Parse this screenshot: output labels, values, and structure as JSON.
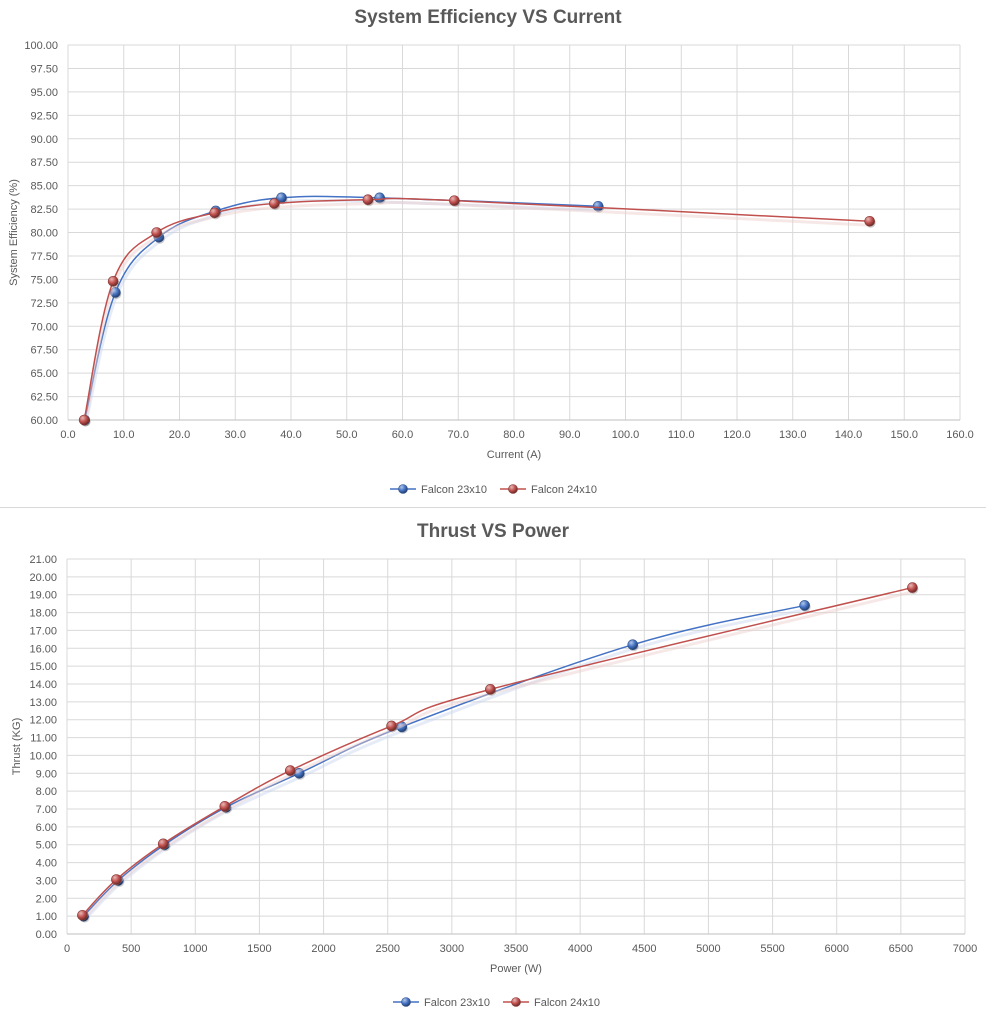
{
  "chart_data": [
    {
      "type": "line",
      "title": "System Efficiency VS Current",
      "xlabel": "Current (A)",
      "ylabel": "System Efficiency (%)",
      "xlim": [
        0,
        160
      ],
      "ylim": [
        60,
        100
      ],
      "x_ticks": [
        "0.0",
        "10.0",
        "20.0",
        "30.0",
        "40.0",
        "50.0",
        "60.0",
        "70.0",
        "80.0",
        "90.0",
        "100.0",
        "110.0",
        "120.0",
        "130.0",
        "140.0",
        "150.0",
        "160.0"
      ],
      "y_ticks": [
        "60.00",
        "62.50",
        "65.00",
        "67.50",
        "70.00",
        "72.50",
        "75.00",
        "77.50",
        "80.00",
        "82.50",
        "85.00",
        "87.50",
        "90.00",
        "92.50",
        "95.00",
        "97.50",
        "100.00"
      ],
      "grid": true,
      "legend_position": "bottom",
      "series": [
        {
          "name": "Falcon 23x10",
          "color": "#4472c4",
          "points": [
            [
              3.0,
              60.0
            ],
            [
              8.5,
              73.6
            ],
            [
              16.3,
              79.5
            ],
            [
              26.5,
              82.3
            ],
            [
              38.3,
              83.7
            ],
            [
              55.9,
              83.7
            ],
            [
              95.1,
              82.8
            ]
          ]
        },
        {
          "name": "Falcon 24x10",
          "color": "#c0504d",
          "points": [
            [
              2.9,
              60.0
            ],
            [
              8.1,
              74.8
            ],
            [
              15.9,
              80.0
            ],
            [
              26.3,
              82.1
            ],
            [
              37.0,
              83.1
            ],
            [
              53.8,
              83.5
            ],
            [
              69.3,
              83.4
            ],
            [
              143.8,
              81.2
            ]
          ]
        }
      ]
    },
    {
      "type": "line",
      "title": "Thrust VS Power",
      "xlabel": "Power (W)",
      "ylabel": "Thrust (KG)",
      "xlim": [
        0,
        7000
      ],
      "ylim": [
        0,
        21
      ],
      "x_ticks": [
        "0",
        "500",
        "1000",
        "1500",
        "2000",
        "2500",
        "3000",
        "3500",
        "4000",
        "4500",
        "5000",
        "5500",
        "6000",
        "6500",
        "7000"
      ],
      "y_ticks": [
        "0.00",
        "1.00",
        "2.00",
        "3.00",
        "4.00",
        "5.00",
        "6.00",
        "7.00",
        "8.00",
        "9.00",
        "10.00",
        "11.00",
        "12.00",
        "13.00",
        "14.00",
        "15.00",
        "16.00",
        "17.00",
        "18.00",
        "19.00",
        "20.00",
        "21.00"
      ],
      "grid": true,
      "legend_position": "bottom",
      "series": [
        {
          "name": "Falcon 23x10",
          "color": "#4472c4",
          "points": [
            [
              130,
              1.0
            ],
            [
              400,
              3.0
            ],
            [
              760,
              5.0
            ],
            [
              1240,
              7.1
            ],
            [
              1810,
              9.0
            ],
            [
              2610,
              11.6
            ],
            [
              4410,
              16.2
            ],
            [
              5750,
              18.4
            ]
          ]
        },
        {
          "name": "Falcon 24x10",
          "color": "#c0504d",
          "points": [
            [
              120,
              1.05
            ],
            [
              385,
              3.05
            ],
            [
              750,
              5.05
            ],
            [
              1230,
              7.15
            ],
            [
              1740,
              9.15
            ],
            [
              2530,
              11.65
            ],
            [
              3300,
              13.7
            ],
            [
              6590,
              19.4
            ]
          ]
        }
      ]
    }
  ]
}
